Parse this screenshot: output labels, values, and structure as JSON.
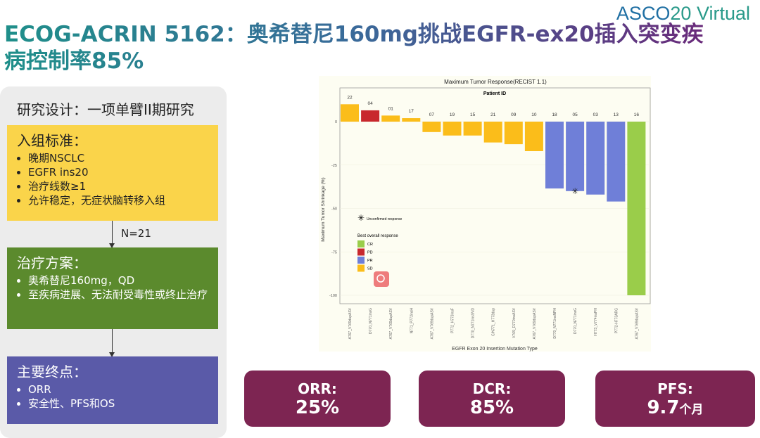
{
  "logo": {
    "asco": "ASCO",
    "year": "20",
    "virtual": " Virtual"
  },
  "title": "ECOG-ACRIN 5162：奥希替尼160mg挑战EGFR-ex20插入突变疾病控制率85%",
  "design": "研究设计：一项单臂II期研究",
  "inclusion": {
    "heading": "入组标准：",
    "items": [
      "晚期NSCLC",
      "EGFR ins20",
      "治疗线数≥1",
      "允许稳定，无症状脑转移入组"
    ]
  },
  "n_label": "N=21",
  "treatment": {
    "heading": "治疗方案：",
    "items": [
      "奥希替尼160mg，QD",
      "至疾病进展、无法耐受毒性或终止治疗"
    ]
  },
  "endpoints": {
    "heading": "主要终点：",
    "items": [
      "ORR",
      "安全性、PFS和OS"
    ]
  },
  "stats": [
    {
      "label": "ORR:",
      "value": "25%"
    },
    {
      "label": "DCR:",
      "value": "85%"
    },
    {
      "label": "PFS:",
      "value": "9.7",
      "unit": "个月"
    }
  ],
  "chart_data": {
    "type": "bar",
    "title": "Maximum Tumor Response(RECIST 1.1)",
    "subtitle": "Patient ID",
    "xlabel": "EGFR Exon 20 Insertion Mutation Type",
    "ylabel": "Maximum Tumor Shrinkage (%)",
    "ylim": [
      -108,
      20
    ],
    "yticks": [
      0,
      -25,
      -50,
      -75,
      -100
    ],
    "patients": [
      "22",
      "04",
      "01",
      "17",
      "07",
      "19",
      "15",
      "21",
      "09",
      "10",
      "18",
      "05",
      "03",
      "13",
      "16"
    ],
    "categories": [
      "A767_V769dupASV",
      "D770_N771insG",
      "A767_V769dupASV",
      "N771_P772insH",
      "A767_V769dupASV",
      "P772_H773insF",
      "D770_N771insSVD",
      "C/N771_H773dup",
      "V769_D770insASV",
      "A767_V769dupASV",
      "D770_N771insNPH",
      "D770_N771insG",
      "H773_V774insPH",
      "P772-H773ARG",
      "A767_V769dupASV"
    ],
    "values": [
      10,
      6.5,
      3.5,
      2,
      -6,
      -8,
      -8,
      -12,
      -13,
      -17,
      -38.5,
      -40,
      -42,
      -46,
      -100
    ],
    "response": [
      "SD",
      "PD",
      "SD",
      "SD",
      "SD",
      "SD",
      "SD",
      "SD",
      "SD",
      "SD",
      "PR",
      "PR",
      "PR",
      "PR",
      "CR"
    ],
    "unconfirmed": [
      "05"
    ],
    "legend": {
      "title": "Best overall response",
      "marker_label": "Unconfirmed response",
      "placement": "left",
      "entries": [
        {
          "name": "CR",
          "color": "#9acd4a"
        },
        {
          "name": "PD",
          "color": "#c8282d"
        },
        {
          "name": "PR",
          "color": "#6f7fd8"
        },
        {
          "name": "SD",
          "color": "#fbbd1a"
        }
      ]
    }
  }
}
